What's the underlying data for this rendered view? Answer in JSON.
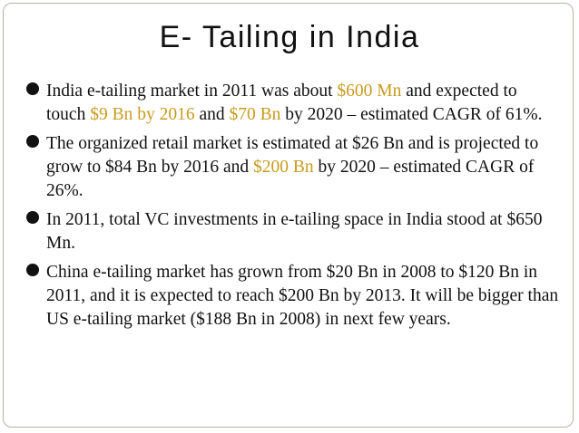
{
  "slide": {
    "title": "E- Tailing in India",
    "accent_color": "#c89b1d",
    "bullets": [
      {
        "parts": [
          "India e-tailing market in 2011 was about ",
          "$600 Mn",
          " and expected to touch ",
          "$9 Bn by 2016",
          " and ",
          "$70 Bn",
          " by 2020 – estimated CAGR of 61%."
        ]
      },
      {
        "parts": [
          "The organized retail market is estimated at $26 Bn and is projected to grow to $84 Bn by 2016 and ",
          "$200 Bn",
          " by 2020 – estimated CAGR of 26%."
        ]
      },
      {
        "parts": [
          "In 2011, total VC investments in e-tailing space in India stood at $650 Mn."
        ]
      },
      {
        "parts": [
          "China e-tailing market has grown from $20 Bn in 2008 to $120 Bn in 2011, and it is expected to reach $200 Bn by 2013. It will be bigger than US e-tailing market ($188 Bn in 2008) in next few years."
        ]
      }
    ]
  }
}
